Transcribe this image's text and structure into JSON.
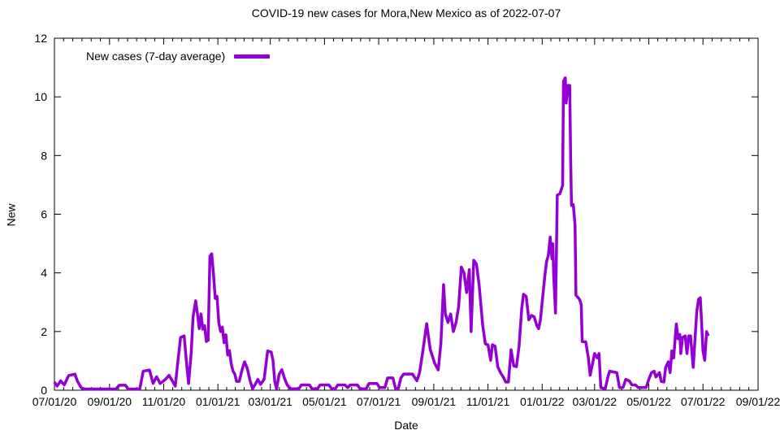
{
  "page": {
    "background": "#ffffff"
  },
  "chart": {
    "title": "COVID-19 new cases for Mora,New Mexico as of 2022-07-07",
    "legend_label": "New cases (7-day average)",
    "x_label": "Date",
    "y_label": "New",
    "line_color": "#9400d3",
    "axis_color": "#000000"
  },
  "chart_data": {
    "type": "line",
    "title": "COVID-19 new cases for Mora,New Mexico as of 2022-07-07",
    "xlabel": "Date",
    "ylabel": "New",
    "legend_position": "top-left-inside",
    "grid": false,
    "ylim": [
      0,
      12
    ],
    "y_ticks": [
      0,
      2,
      4,
      6,
      8,
      10,
      12
    ],
    "x_range": [
      "07/01/20",
      "09/01/22"
    ],
    "x_tick_labels": [
      "07/01/20",
      "09/01/20",
      "11/01/20",
      "01/01/21",
      "03/01/21",
      "05/01/21",
      "07/01/21",
      "09/01/21",
      "11/01/21",
      "01/01/22",
      "03/01/22",
      "05/01/22",
      "07/01/22",
      "09/01/22"
    ],
    "x_minor_divisions": 6,
    "series": [
      {
        "name": "New cases (7-day average)",
        "color": "#9400d3",
        "points": [
          [
            "07/01/20",
            0.28
          ],
          [
            "07/04/20",
            0.14
          ],
          [
            "07/08/20",
            0.32
          ],
          [
            "07/12/20",
            0.18
          ],
          [
            "07/17/20",
            0.5
          ],
          [
            "07/24/20",
            0.55
          ],
          [
            "07/27/20",
            0.3
          ],
          [
            "07/31/20",
            0.09
          ],
          [
            "08/04/20",
            0.04
          ],
          [
            "09/08/20",
            0.04
          ],
          [
            "09/12/20",
            0.17
          ],
          [
            "09/19/20",
            0.17
          ],
          [
            "09/22/20",
            0.04
          ],
          [
            "10/05/20",
            0.04
          ],
          [
            "10/09/20",
            0.65
          ],
          [
            "10/16/20",
            0.69
          ],
          [
            "10/20/20",
            0.23
          ],
          [
            "10/24/20",
            0.46
          ],
          [
            "10/28/20",
            0.23
          ],
          [
            "11/03/20",
            0.37
          ],
          [
            "11/07/20",
            0.51
          ],
          [
            "11/11/20",
            0.3
          ],
          [
            "11/14/20",
            0.14
          ],
          [
            "11/17/20",
            1.0
          ],
          [
            "11/20/20",
            1.8
          ],
          [
            "11/24/20",
            1.85
          ],
          [
            "11/27/20",
            0.83
          ],
          [
            "11/29/20",
            0.23
          ],
          [
            "12/02/20",
            1.3
          ],
          [
            "12/04/20",
            2.49
          ],
          [
            "12/07/20",
            3.05
          ],
          [
            "12/09/20",
            2.6
          ],
          [
            "12/11/20",
            2.1
          ],
          [
            "12/13/20",
            2.6
          ],
          [
            "12/15/20",
            2.08
          ],
          [
            "12/17/20",
            2.2
          ],
          [
            "12/19/20",
            1.66
          ],
          [
            "12/21/20",
            1.7
          ],
          [
            "12/23/20",
            4.57
          ],
          [
            "12/25/20",
            4.65
          ],
          [
            "12/27/20",
            3.97
          ],
          [
            "12/29/20",
            3.13
          ],
          [
            "12/31/20",
            3.2
          ],
          [
            "01/02/21",
            2.31
          ],
          [
            "01/04/21",
            2.0
          ],
          [
            "01/06/21",
            2.15
          ],
          [
            "01/08/21",
            1.62
          ],
          [
            "01/10/21",
            1.89
          ],
          [
            "01/12/21",
            1.2
          ],
          [
            "01/14/21",
            1.35
          ],
          [
            "01/16/21",
            0.9
          ],
          [
            "01/18/21",
            0.65
          ],
          [
            "01/20/21",
            0.55
          ],
          [
            "01/22/21",
            0.3
          ],
          [
            "01/25/21",
            0.3
          ],
          [
            "01/27/21",
            0.55
          ],
          [
            "01/29/21",
            0.78
          ],
          [
            "01/31/21",
            0.97
          ],
          [
            "02/03/21",
            0.75
          ],
          [
            "02/06/21",
            0.35
          ],
          [
            "02/09/21",
            0.05
          ],
          [
            "02/12/21",
            0.2
          ],
          [
            "02/15/21",
            0.37
          ],
          [
            "02/18/21",
            0.2
          ],
          [
            "02/22/21",
            0.37
          ],
          [
            "02/26/21",
            1.34
          ],
          [
            "03/02/21",
            1.3
          ],
          [
            "03/04/21",
            1.02
          ],
          [
            "03/06/21",
            0.3
          ],
          [
            "03/08/21",
            0.05
          ],
          [
            "03/11/21",
            0.55
          ],
          [
            "03/14/21",
            0.7
          ],
          [
            "03/17/21",
            0.4
          ],
          [
            "03/20/21",
            0.18
          ],
          [
            "03/24/21",
            0.05
          ],
          [
            "04/02/21",
            0.05
          ],
          [
            "04/05/21",
            0.18
          ],
          [
            "04/14/21",
            0.18
          ],
          [
            "04/17/21",
            0.05
          ],
          [
            "04/23/21",
            0.05
          ],
          [
            "04/26/21",
            0.18
          ],
          [
            "05/06/21",
            0.18
          ],
          [
            "05/09/21",
            0.05
          ],
          [
            "05/13/21",
            0.05
          ],
          [
            "05/16/21",
            0.18
          ],
          [
            "05/24/21",
            0.18
          ],
          [
            "05/27/21",
            0.09
          ],
          [
            "05/30/21",
            0.18
          ],
          [
            "06/07/21",
            0.18
          ],
          [
            "06/10/21",
            0.05
          ],
          [
            "06/17/21",
            0.05
          ],
          [
            "06/20/21",
            0.23
          ],
          [
            "06/29/21",
            0.23
          ],
          [
            "07/02/21",
            0.09
          ],
          [
            "07/08/21",
            0.09
          ],
          [
            "07/11/21",
            0.42
          ],
          [
            "07/17/21",
            0.42
          ],
          [
            "07/20/21",
            0.05
          ],
          [
            "07/23/21",
            0.05
          ],
          [
            "07/26/21",
            0.42
          ],
          [
            "07/29/21",
            0.55
          ],
          [
            "08/08/21",
            0.55
          ],
          [
            "08/13/21",
            0.32
          ],
          [
            "08/16/21",
            0.6
          ],
          [
            "08/20/21",
            1.4
          ],
          [
            "08/24/21",
            2.27
          ],
          [
            "08/28/21",
            1.39
          ],
          [
            "09/02/21",
            0.92
          ],
          [
            "09/06/21",
            0.69
          ],
          [
            "09/09/21",
            1.6
          ],
          [
            "09/12/21",
            3.6
          ],
          [
            "09/14/21",
            2.6
          ],
          [
            "09/17/21",
            2.31
          ],
          [
            "09/20/21",
            2.6
          ],
          [
            "09/23/21",
            2.0
          ],
          [
            "09/26/21",
            2.3
          ],
          [
            "09/29/21",
            2.86
          ],
          [
            "10/02/21",
            4.2
          ],
          [
            "10/05/21",
            4.0
          ],
          [
            "10/08/21",
            3.33
          ],
          [
            "10/11/21",
            4.11
          ],
          [
            "10/13/21",
            2.0
          ],
          [
            "10/16/21",
            4.43
          ],
          [
            "10/19/21",
            4.3
          ],
          [
            "10/22/21",
            3.6
          ],
          [
            "10/26/21",
            2.22
          ],
          [
            "10/29/21",
            1.58
          ],
          [
            "11/01/21",
            1.55
          ],
          [
            "11/04/21",
            1.02
          ],
          [
            "11/06/21",
            1.55
          ],
          [
            "11/09/21",
            1.5
          ],
          [
            "11/12/21",
            0.8
          ],
          [
            "11/15/21",
            0.6
          ],
          [
            "11/18/21",
            0.46
          ],
          [
            "11/21/21",
            0.28
          ],
          [
            "11/24/21",
            0.28
          ],
          [
            "11/27/21",
            1.38
          ],
          [
            "11/30/21",
            0.83
          ],
          [
            "12/03/21",
            0.8
          ],
          [
            "12/06/21",
            1.5
          ],
          [
            "12/09/21",
            2.8
          ],
          [
            "12/11/21",
            3.27
          ],
          [
            "12/14/21",
            3.2
          ],
          [
            "12/17/21",
            2.4
          ],
          [
            "12/20/21",
            2.55
          ],
          [
            "12/23/21",
            2.5
          ],
          [
            "12/26/21",
            2.2
          ],
          [
            "12/28/21",
            2.1
          ],
          [
            "12/30/21",
            2.4
          ],
          [
            "01/01/22",
            3.0
          ],
          [
            "01/04/22",
            3.9
          ],
          [
            "01/06/22",
            4.4
          ],
          [
            "01/08/22",
            4.6
          ],
          [
            "01/10/22",
            5.22
          ],
          [
            "01/12/22",
            4.48
          ],
          [
            "01/13/22",
            4.99
          ],
          [
            "01/14/22",
            3.88
          ],
          [
            "01/16/22",
            2.63
          ],
          [
            "01/18/22",
            6.65
          ],
          [
            "01/21/22",
            6.7
          ],
          [
            "01/24/22",
            6.98
          ],
          [
            "01/25/22",
            10.53
          ],
          [
            "01/27/22",
            10.65
          ],
          [
            "01/28/22",
            9.79
          ],
          [
            "01/30/22",
            10.39
          ],
          [
            "02/01/22",
            10.39
          ],
          [
            "02/02/22",
            8.0
          ],
          [
            "02/03/22",
            6.3
          ],
          [
            "02/05/22",
            6.33
          ],
          [
            "02/07/22",
            5.63
          ],
          [
            "02/08/22",
            3.24
          ],
          [
            "02/12/22",
            3.1
          ],
          [
            "02/14/22",
            2.91
          ],
          [
            "02/15/22",
            1.66
          ],
          [
            "02/19/22",
            1.65
          ],
          [
            "02/22/22",
            1.11
          ],
          [
            "02/24/22",
            0.51
          ],
          [
            "03/01/22",
            1.25
          ],
          [
            "03/04/22",
            1.1
          ],
          [
            "03/06/22",
            1.25
          ],
          [
            "03/08/22",
            0.09
          ],
          [
            "03/13/22",
            0.05
          ],
          [
            "03/16/22",
            0.46
          ],
          [
            "03/18/22",
            0.65
          ],
          [
            "03/26/22",
            0.6
          ],
          [
            "03/29/22",
            0.09
          ],
          [
            "04/02/22",
            0.09
          ],
          [
            "04/05/22",
            0.37
          ],
          [
            "04/09/22",
            0.32
          ],
          [
            "04/12/22",
            0.18
          ],
          [
            "04/16/22",
            0.18
          ],
          [
            "04/19/22",
            0.09
          ],
          [
            "04/28/22",
            0.09
          ],
          [
            "05/01/22",
            0.37
          ],
          [
            "05/04/22",
            0.6
          ],
          [
            "05/07/22",
            0.65
          ],
          [
            "05/09/22",
            0.45
          ],
          [
            "05/13/22",
            0.6
          ],
          [
            "05/15/22",
            0.3
          ],
          [
            "05/18/22",
            0.28
          ],
          [
            "05/20/22",
            0.78
          ],
          [
            "05/23/22",
            0.97
          ],
          [
            "05/25/22",
            0.6
          ],
          [
            "05/27/22",
            1.34
          ],
          [
            "05/29/22",
            1.1
          ],
          [
            "06/01/22",
            2.26
          ],
          [
            "06/03/22",
            1.75
          ],
          [
            "06/05/22",
            1.9
          ],
          [
            "06/06/22",
            1.25
          ],
          [
            "06/08/22",
            1.8
          ],
          [
            "06/11/22",
            1.85
          ],
          [
            "06/13/22",
            1.25
          ],
          [
            "06/15/22",
            1.85
          ],
          [
            "06/17/22",
            1.85
          ],
          [
            "06/20/22",
            0.78
          ],
          [
            "06/24/22",
            2.68
          ],
          [
            "06/26/22",
            3.1
          ],
          [
            "06/28/22",
            3.15
          ],
          [
            "06/29/22",
            2.58
          ],
          [
            "07/01/22",
            1.34
          ],
          [
            "07/03/22",
            1.02
          ],
          [
            "07/05/22",
            2.0
          ],
          [
            "07/07/22",
            1.85
          ]
        ]
      }
    ]
  }
}
